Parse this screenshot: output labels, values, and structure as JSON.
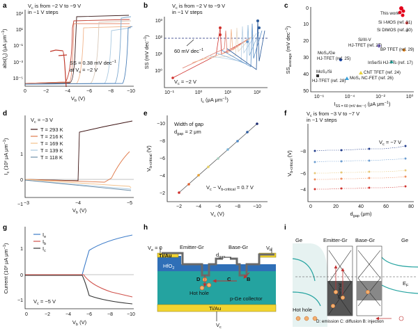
{
  "panels": {
    "a": {
      "label": "a",
      "annotation_line1": "V",
      "annotation_line1_sub": "c",
      "annotation_line1_rest": " is from −2 V to −9 V",
      "annotation_line2": "in −1 V steps",
      "ss_line1": "SS = 0.38 mV dec",
      "ss_line1_sup": "−1",
      "ss_line2": "at V",
      "ss_line2_sub": "c",
      "ss_line2_rest": " = −2 V",
      "ylabel": "abs(I",
      "ylabel_sub": "c",
      "ylabel_rest": ") (μA μm",
      "ylabel_sup": "−1",
      "ylabel_end": ")",
      "xlabel": "V",
      "xlabel_sub": "b",
      "xlabel_rest": " (V)",
      "xticks": [
        "0",
        "−2",
        "−4",
        "−6",
        "−8",
        "−10"
      ],
      "yticks": [
        "10³",
        "10¹",
        "10⁻¹",
        "10⁻³",
        "10⁻⁵"
      ]
    },
    "b": {
      "label": "b",
      "annotation_line1": "V",
      "annotation_line1_sub": "c",
      "annotation_line1_rest": " is from −2 V to −9 V",
      "annotation_line2": "in −1 V steps",
      "ref_label": "60 mV dec",
      "ref_label_sup": "−1",
      "vc_label": "V",
      "vc_label_sub": "c",
      "vc_label_rest": " = −2 V",
      "ylabel": "SS (mV dec",
      "ylabel_sup": "−1",
      "ylabel_end": ")",
      "xlabel": "I",
      "xlabel_sub": "c",
      "xlabel_rest": " (μA μm",
      "xlabel_sup": "−1",
      "xlabel_end": ")",
      "xticks": [
        "10⁻¹",
        "10⁰",
        "10¹",
        "10²"
      ],
      "yticks": [
        "10³",
        "10²",
        "10¹",
        "10⁰"
      ]
    },
    "c": {
      "label": "c",
      "ylabel": "SS",
      "ylabel_sub": "average",
      "ylabel_rest": " (mV dec",
      "ylabel_sup": "−1",
      "ylabel_end": ")",
      "xlabel": "I",
      "xlabel_sub": "SS = 60 (mV dec⁻¹)",
      "xlabel_rest": " (μA μm",
      "xlabel_sup": "−1",
      "xlabel_end": ")",
      "xticks": [
        "10⁻⁶",
        "10⁻⁴",
        "10⁻²",
        "10⁰"
      ],
      "yticks": [
        "0",
        "10",
        "20",
        "30",
        "40",
        "50"
      ],
      "points": [
        {
          "label": "This work",
          "color": "#e3001b"
        },
        {
          "label": "Si I-MOS (ref. 31)",
          "color": "#d94b4b"
        },
        {
          "label": "Si DIMOS (ref. 30)",
          "color": "#b0b0b0"
        },
        {
          "label": "Si/III-V",
          "color": "#7d6cc4"
        },
        {
          "label": "HJ-TFET (ref. 27)",
          "color": "#7d6cc4"
        },
        {
          "label": "BP TFET (ref. 29)",
          "color": "#f08c1e"
        },
        {
          "label": "MoS₂/Ge",
          "color": "#1f4aa8"
        },
        {
          "label": "HJ-TFET (ref. 25)",
          "color": "#1f4aa8"
        },
        {
          "label": "InSe/Si HJ-TTs (ref. 17)",
          "color": "#2ab0a8"
        },
        {
          "label": "CNT TFET (ref. 24)",
          "color": "#e8d13a"
        },
        {
          "label": "MoS₂/Si",
          "color": "#333333"
        },
        {
          "label": "HJ-TFET (ref. 28)",
          "color": "#333333"
        },
        {
          "label": "MoS₂ NC-FET (ref. 26)",
          "color": "#3aa0d8"
        }
      ]
    },
    "d": {
      "label": "d",
      "vc_label": "V",
      "vc_label_sub": "c",
      "vc_label_rest": " = −3 V",
      "legend": [
        {
          "label": "T = 293 K",
          "color": "#3a1010"
        },
        {
          "label": "T = 216 K",
          "color": "#e07a4a"
        },
        {
          "label": "T = 169 K",
          "color": "#f2c08a"
        },
        {
          "label": "T = 139 K",
          "color": "#a8c8e0"
        },
        {
          "label": "T = 118 K",
          "color": "#6f8fa8"
        }
      ],
      "ylabel": "I",
      "ylabel_sub": "c",
      "ylabel_rest": " (10² μA μm",
      "ylabel_sup": "−1",
      "ylabel_end": ")",
      "xlabel": "V",
      "xlabel_sub": "b",
      "xlabel_rest": " (V)",
      "xticks": [
        "−3",
        "−4",
        "−5"
      ],
      "yticks": [
        "1",
        "0",
        "−1"
      ]
    },
    "e": {
      "label": "e",
      "ann_line1": "Width of gap",
      "ann_line2": "d",
      "ann_line2_sub": "gap",
      "ann_line2_rest": " = 2 μm",
      "ann_eq": "V",
      "ann_eq_sub": "c",
      "ann_eq_mid": " − V",
      "ann_eq_sub2": "b-critical",
      "ann_eq_rest": " = 0.7 V",
      "ylabel": "V",
      "ylabel_sub": "b-critical",
      "ylabel_rest": " (V)",
      "xlabel": "V",
      "xlabel_sub": "c",
      "xlabel_rest": " (V)",
      "xticks": [
        "−2",
        "−4",
        "−6",
        "−8",
        "−10"
      ],
      "yticks": [
        "−2",
        "−4",
        "−6",
        "−8",
        "−10"
      ]
    },
    "f": {
      "label": "f",
      "ann_line1": "V",
      "ann_line1_sub": "c",
      "ann_line1_rest": " is from −3 V to −7 V",
      "ann_line2": "in −1 V steps",
      "vc_label": "V",
      "vc_label_sub": "c",
      "vc_label_rest": " = −7 V",
      "ylabel": "V",
      "ylabel_sub": "b-critical",
      "ylabel_rest": " (V)",
      "xlabel": "d",
      "xlabel_sub": "gap",
      "xlabel_rest": " (μm)",
      "xticks": [
        "0",
        "20",
        "40",
        "60",
        "80"
      ],
      "yticks": [
        "−8",
        "−6",
        "−4"
      ]
    },
    "g": {
      "label": "g",
      "legend": [
        {
          "label": "I",
          "sub": "e",
          "color": "#3d7cc9"
        },
        {
          "label": "I",
          "sub": "b",
          "color": "#d0504a"
        },
        {
          "label": "I",
          "sub": "c",
          "color": "#333333"
        }
      ],
      "vc_label": "V",
      "vc_label_sub": "c",
      "vc_label_rest": " = −5 V",
      "ylabel": "Current (10² μA μm",
      "ylabel_sup": "−1",
      "ylabel_end": ")",
      "xlabel": "V",
      "xlabel_sub": "b",
      "xlabel_rest": " (V)",
      "xticks": [
        "0",
        "−2",
        "−4",
        "−6",
        "−8",
        "−10"
      ],
      "yticks": [
        "1",
        "0",
        "−1"
      ]
    },
    "h": {
      "label": "h",
      "ve_label": "V",
      "ve_label_sub": "e",
      "ve_label_rest": " = 0",
      "emitter_label": "Emitter-Gr",
      "base_label": "Base-Gr",
      "vb_label": "V",
      "vb_label_sub": "b",
      "tiau_top": "Ti/Au",
      "hfo2": "HfO",
      "hfo2_sub": "2",
      "dgap": "d",
      "dgap_sub": "gap",
      "d_label": "D",
      "c_label": "C",
      "b_label": "B",
      "hot_hole": "Hot hole",
      "collector": "p-Ge collector",
      "tiau_bottom": "Ti/Au",
      "vc_label": "V",
      "vc_label_sub": "c"
    },
    "i": {
      "label": "i",
      "ge_left": "Ge",
      "emitter_label": "Emitter-Gr",
      "base_label": "Base-Gr",
      "ge_right": "Ge",
      "ef_label": "E",
      "ef_sub": "F",
      "hot_hole": "Hot hole",
      "caption": "D: emission  C: diffusion  B: injection",
      "thermal_label": "Thermal"
    }
  },
  "colors": {
    "red": "#d0312d",
    "blue": "#3d7cc9",
    "teal": "#2a9d8f",
    "tiau": "#f2d430",
    "hfo2": "#2f6fb7",
    "ge": "#24a3a0",
    "graphene": "#7a7a7a"
  }
}
